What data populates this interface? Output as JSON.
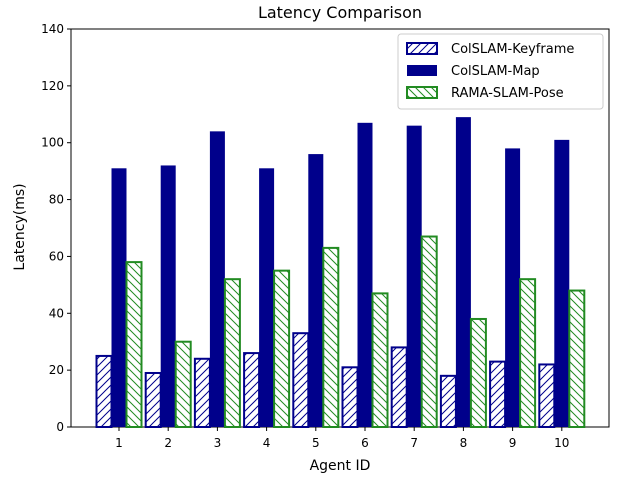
{
  "chart_data": {
    "type": "bar",
    "title": "Latency Comparison",
    "xlabel": "Agent ID",
    "ylabel": "Latency(ms)",
    "categories": [
      "1",
      "2",
      "3",
      "4",
      "5",
      "6",
      "7",
      "8",
      "9",
      "10"
    ],
    "ylim": [
      0,
      140
    ],
    "yticks": [
      0,
      20,
      40,
      60,
      80,
      100,
      120,
      140
    ],
    "grid": false,
    "legend_position": "top-right",
    "series": [
      {
        "name": "ColSLAM-Keyframe",
        "values": [
          25,
          19,
          24,
          26,
          33,
          21,
          28,
          18,
          23,
          22
        ],
        "color": "#00008b",
        "fill": "hatched"
      },
      {
        "name": "ColSLAM-Map",
        "values": [
          91,
          92,
          104,
          91,
          96,
          107,
          106,
          109,
          98,
          101
        ],
        "color": "#00008b",
        "fill": "solid"
      },
      {
        "name": "RAMA-SLAM-Pose",
        "values": [
          58,
          30,
          52,
          55,
          63,
          47,
          67,
          38,
          52,
          48
        ],
        "color": "#228b22",
        "fill": "hatched"
      }
    ]
  }
}
